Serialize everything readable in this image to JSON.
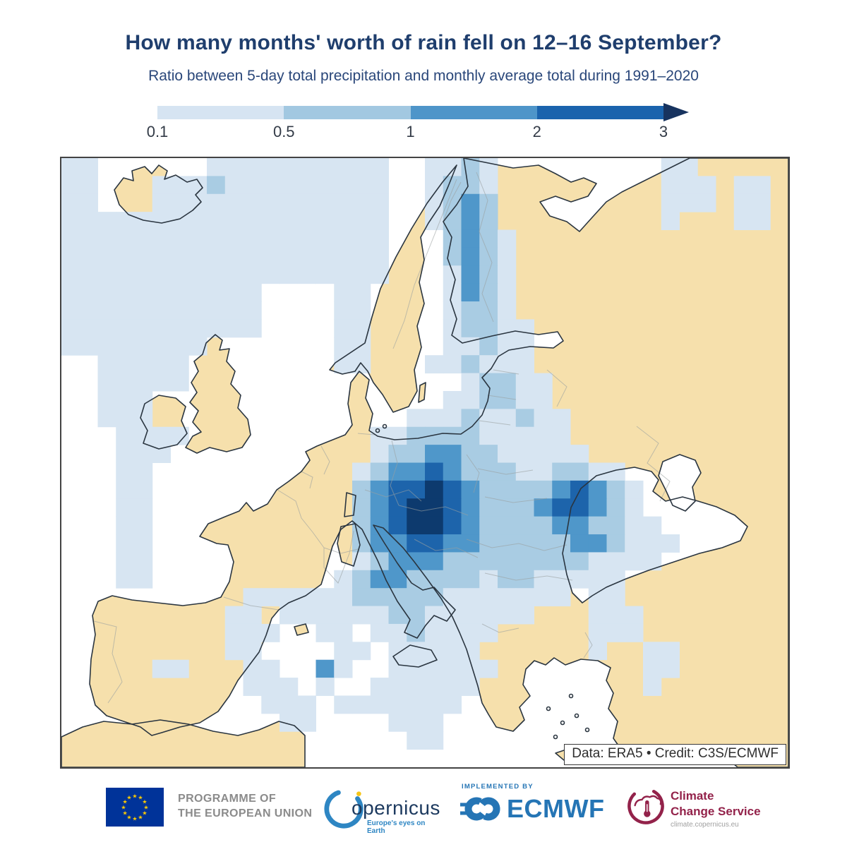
{
  "header": {
    "title": "How many months' worth of rain fell on 12–16 September?",
    "subtitle": "Ratio between 5-day total precipitation and monthly average total during 1991–2020"
  },
  "colorbar": {
    "ticks": [
      "0.1",
      "0.5",
      "1",
      "2",
      "3"
    ],
    "segments": [
      "#d6e4f2",
      "#a2c8e1",
      "#4e95c9",
      "#1b63ad"
    ],
    "arrow_color": "#17335f"
  },
  "map": {
    "attribution": "Data: ERA5 • Credit: C3S/ECMWF",
    "land_color": "#f6e0ac",
    "sea_color": "#ffffff",
    "coast_color": "#2a3540",
    "border_color": "#9aa0a0",
    "levels": {
      "1": "#d7e5f2",
      "2": "#a9cce3",
      "3": "#4f97ca",
      "4": "#1d64ab",
      "5": "#0d3a6e"
    },
    "grid": {
      "cols": 40,
      "rows": 34,
      "cell": [
        "11......1111111111..1121.........11.....",
        "11...1112111111111..1221.........111.11.",
        "11...1111111111111..1232.........111.11.",
        "111111111111111111..1232.........1...11.",
        "111111111111111111...2321...............",
        "111111111111111111...2321...............",
        "111111111111111111...1321...............",
        "11111111111....11....1321...............",
        "11111111111....11....1221...............",
        "11111111111....11....12211..............",
        "11111111.......11....11211..............",
        "..11111........11...112111..............",
        "..11111...............12211.............",
        "..111................112211.............",
        "..111..............111211211............",
        "...1111..........11222211111............",
        "...111...........122332211111...........",
        "...11...........123343222112211.........",
        "...11...........2344543222234321........",
        "...11...........2345543222344321........",
        "...11...........23455432222332211.......",
        "...11...........233443322222332111......",
        "...11...........12333222222221111.......",
        "...11..........1233222212211111.........",
        "..........111111222221111111.11.........",
        ".........11.11111122111111...111........",
        ".........111..11.1121111.....111........",
        ".........11....11.11111......1..11......",
        ".....11...11..31..111111........11......",
        "..........111.1..111111.........1.......",
        "...........111.1111111..................",
        "............11....111...................",
        "...................11...................",
        "........................................"
      ]
    }
  },
  "footer": {
    "eu_label_line1": "PROGRAMME OF",
    "eu_label_line2": "THE EUROPEAN UNION",
    "copernicus_name": "opernicus",
    "copernicus_tagline": "Europe's eyes on Earth",
    "implemented_by": "IMPLEMENTED BY",
    "ecmwf_name": "ECMWF",
    "c3s_line1": "Climate",
    "c3s_line2": "Change Service",
    "c3s_url": "climate.copernicus.eu"
  },
  "colors": {
    "title_navy": "#1f3e6d",
    "eu_blue": "#003399",
    "star_gold": "#ffcc00",
    "copernicus_blue": "#2e86c3",
    "copernicus_dark": "#1d3a5f",
    "ecmwf_blue": "#2575b5",
    "c3s_maroon": "#93224a",
    "footer_gray": "#8b8b8b"
  }
}
